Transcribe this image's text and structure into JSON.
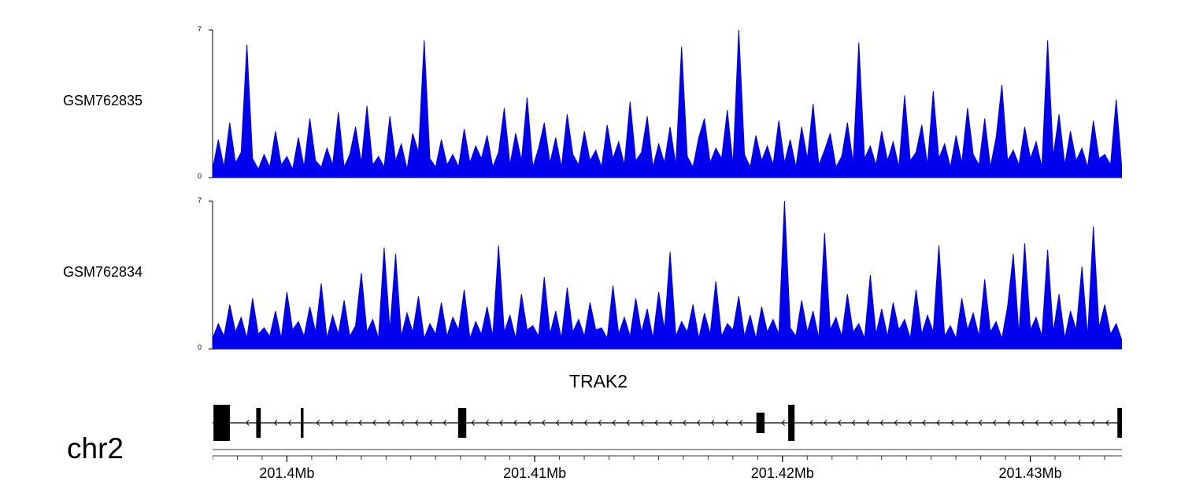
{
  "chart_data": {
    "type": "area",
    "title": "",
    "signal_color": "#0000ee",
    "ylim": [
      0,
      7
    ],
    "y_axis_labels": {
      "top": "7",
      "bottom": "0"
    },
    "region": {
      "chromosome": "chr2",
      "xlim_mb": [
        201.397,
        201.4337
      ],
      "axis_ticks_mb": [
        201.4,
        201.41,
        201.42,
        201.43
      ],
      "axis_tick_labels": [
        "201.4Mb",
        "201.41Mb",
        "201.42Mb",
        "201.43Mb"
      ],
      "minor_tick_interval_mb": 0.001
    },
    "series": [
      {
        "name": "GSM762835",
        "values": [
          0.4,
          1.8,
          0.5,
          2.6,
          0.7,
          1.2,
          6.3,
          0.9,
          0.4,
          1.1,
          0.5,
          2.2,
          0.6,
          1.0,
          0.4,
          1.9,
          0.5,
          2.8,
          0.8,
          0.5,
          1.4,
          0.6,
          3.1,
          0.5,
          1.1,
          2.4,
          0.7,
          3.4,
          0.6,
          1.0,
          0.5,
          2.9,
          0.8,
          1.6,
          0.4,
          2.1,
          1.2,
          6.5,
          0.9,
          0.5,
          1.8,
          0.6,
          1.1,
          0.5,
          2.3,
          0.7,
          1.5,
          0.9,
          2.0,
          0.5,
          1.2,
          3.3,
          0.6,
          2.1,
          0.8,
          3.8,
          0.5,
          1.4,
          2.6,
          0.7,
          1.9,
          0.5,
          3.0,
          1.1,
          0.6,
          2.2,
          0.8,
          1.3,
          0.5,
          2.5,
          0.9,
          1.7,
          0.6,
          3.6,
          0.8,
          1.2,
          2.9,
          0.5,
          1.6,
          0.7,
          2.4,
          0.6,
          6.2,
          1.0,
          0.5,
          1.9,
          2.8,
          0.7,
          1.4,
          0.9,
          3.2,
          0.6,
          7.0,
          1.1,
          0.5,
          2.0,
          0.8,
          1.5,
          0.6,
          2.7,
          0.7,
          1.8,
          0.5,
          2.4,
          0.9,
          3.5,
          0.6,
          1.3,
          2.1,
          0.5,
          1.0,
          2.6,
          0.7,
          6.4,
          0.9,
          1.5,
          0.6,
          2.2,
          0.8,
          1.7,
          0.5,
          3.9,
          0.8,
          1.2,
          2.5,
          0.6,
          4.1,
          0.9,
          1.6,
          0.5,
          2.0,
          0.7,
          3.3,
          1.1,
          0.6,
          2.8,
          0.5,
          1.9,
          4.4,
          0.8,
          1.3,
          0.6,
          2.4,
          0.9,
          1.7,
          0.5,
          6.5,
          1.0,
          3.0,
          0.6,
          2.2,
          0.8,
          1.4,
          0.5,
          2.7,
          0.9,
          1.1,
          0.6,
          3.7,
          0.4
        ]
      },
      {
        "name": "GSM762834",
        "values": [
          0.5,
          1.2,
          0.6,
          2.1,
          0.8,
          1.5,
          0.5,
          2.4,
          0.7,
          1.0,
          0.6,
          1.8,
          0.5,
          2.7,
          0.9,
          1.3,
          0.6,
          2.0,
          0.8,
          3.1,
          0.5,
          1.6,
          0.7,
          2.3,
          0.6,
          1.1,
          3.6,
          0.8,
          1.4,
          0.5,
          4.8,
          0.9,
          4.5,
          0.6,
          1.7,
          0.8,
          2.5,
          0.5,
          1.2,
          0.7,
          2.2,
          0.6,
          1.5,
          0.9,
          2.8,
          0.5,
          1.3,
          0.7,
          2.0,
          0.6,
          4.9,
          0.8,
          1.6,
          0.5,
          2.6,
          0.9,
          1.1,
          0.6,
          3.4,
          0.7,
          1.8,
          0.5,
          2.9,
          0.8,
          1.4,
          0.6,
          2.2,
          0.9,
          1.0,
          0.5,
          3.0,
          0.7,
          1.5,
          0.6,
          2.4,
          0.8,
          1.9,
          0.5,
          2.7,
          0.9,
          4.6,
          0.6,
          1.3,
          0.8,
          2.1,
          0.5,
          1.7,
          0.7,
          3.2,
          0.6,
          1.2,
          0.9,
          2.5,
          0.6,
          1.6,
          0.5,
          2.0,
          0.8,
          1.4,
          0.7,
          7.0,
          1.0,
          0.6,
          2.3,
          0.8,
          1.8,
          0.5,
          5.5,
          0.9,
          1.5,
          0.6,
          2.6,
          0.8,
          1.2,
          0.5,
          3.5,
          0.7,
          1.9,
          0.6,
          2.2,
          0.9,
          1.4,
          0.5,
          2.8,
          0.7,
          1.6,
          0.8,
          4.9,
          0.6,
          1.1,
          0.5,
          2.4,
          0.9,
          1.7,
          0.6,
          3.3,
          0.8,
          1.3,
          0.5,
          2.0,
          4.5,
          0.7,
          5.0,
          0.9,
          1.5,
          0.6,
          4.7,
          0.8,
          2.6,
          0.5,
          1.8,
          0.9,
          3.9,
          0.6,
          5.8,
          1.0,
          2.1,
          0.7,
          1.2,
          0.4
        ]
      }
    ],
    "gene_track": {
      "gene_name": "TRAK2",
      "strand": "-",
      "exons": [
        {
          "start_frac": 0.001,
          "width_frac": 0.018,
          "size": "large"
        },
        {
          "start_frac": 0.048,
          "width_frac": 0.005,
          "size": "medium"
        },
        {
          "start_frac": 0.097,
          "width_frac": 0.003,
          "size": "medium"
        },
        {
          "start_frac": 0.27,
          "width_frac": 0.009,
          "size": "medium"
        },
        {
          "start_frac": 0.598,
          "width_frac": 0.009,
          "size": "small"
        },
        {
          "start_frac": 0.633,
          "width_frac": 0.007,
          "size": "large"
        },
        {
          "start_frac": 0.995,
          "width_frac": 0.005,
          "size": "medium"
        }
      ]
    }
  }
}
